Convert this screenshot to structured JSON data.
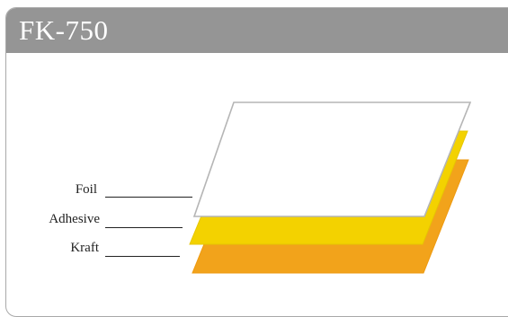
{
  "product": {
    "title": "FK-750"
  },
  "layers": [
    {
      "label": "Foil",
      "color": "#ffffff"
    },
    {
      "label": "Adhesive",
      "color": "#f3d200"
    },
    {
      "label": "Kraft",
      "color": "#f2a31b"
    }
  ],
  "colors": {
    "header_bg": "#959595",
    "header_text": "#ffffff",
    "border": "#a9a9a9",
    "foil_outline": "#b5b5b5",
    "adhesive_shade": "#e6c600",
    "kraft_shade": "#ee9a10"
  }
}
